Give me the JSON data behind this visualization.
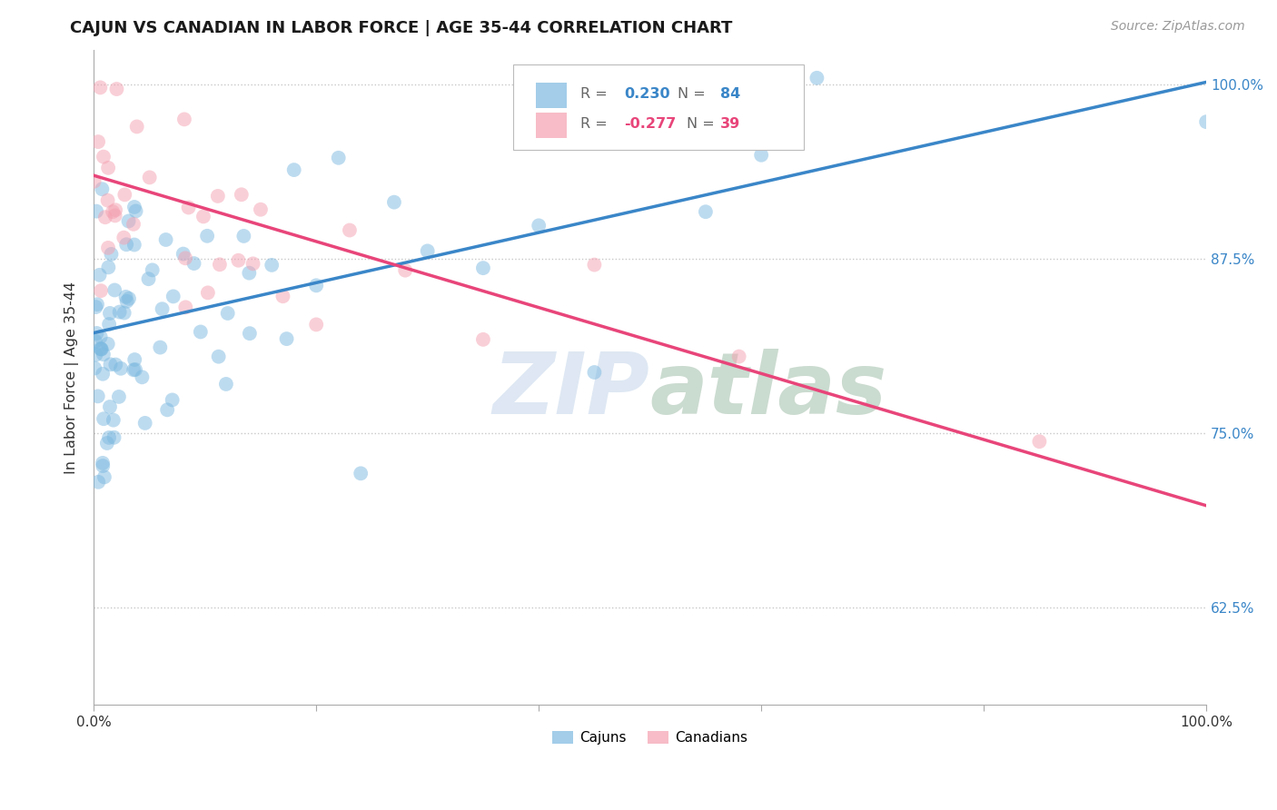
{
  "title": "CAJUN VS CANADIAN IN LABOR FORCE | AGE 35-44 CORRELATION CHART",
  "source_text": "Source: ZipAtlas.com",
  "ylabel": "In Labor Force | Age 35-44",
  "xlim": [
    0.0,
    1.0
  ],
  "ylim": [
    0.555,
    1.025
  ],
  "yticks": [
    0.625,
    0.75,
    0.875,
    1.0
  ],
  "ytick_labels": [
    "62.5%",
    "75.0%",
    "87.5%",
    "100.0%"
  ],
  "xtick_labels": [
    "0.0%",
    "100.0%"
  ],
  "legend_R_cajun": "0.230",
  "legend_N_cajun": "84",
  "legend_R_canadian": "-0.277",
  "legend_N_canadian": "39",
  "cajun_color": "#7cb9e0",
  "canadian_color": "#f4a0b0",
  "cajun_line_color": "#3a86c8",
  "canadian_line_color": "#e8457a",
  "watermark_ZIP": "#c8d8e8",
  "watermark_atlas": "#b0c8b8",
  "background_color": "#ffffff",
  "grid_color": "#c8c8c8",
  "title_fontsize": 13,
  "blue_line_x": [
    0.0,
    1.0
  ],
  "blue_line_y": [
    0.822,
    1.002
  ],
  "pink_line_x": [
    0.0,
    1.0
  ],
  "pink_line_y": [
    0.935,
    0.698
  ]
}
